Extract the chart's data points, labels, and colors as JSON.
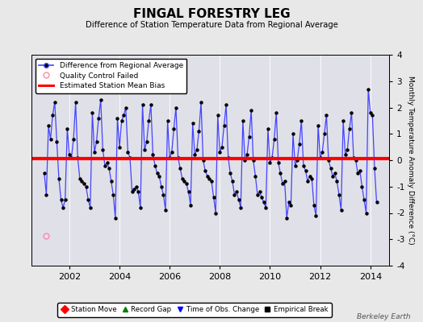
{
  "title": "FINGAL FORESTRY LEG",
  "subtitle": "Difference of Station Temperature Data from Regional Average",
  "ylabel_right": "Monthly Temperature Anomaly Difference (°C)",
  "bias_value": 0.05,
  "ylim": [
    -4,
    4
  ],
  "xlim": [
    2000.5,
    2014.75
  ],
  "xticks": [
    2002,
    2004,
    2006,
    2008,
    2010,
    2012,
    2014
  ],
  "yticks": [
    -3,
    -2,
    -1,
    0,
    1,
    2,
    3
  ],
  "yticks_outer": [
    -4,
    4
  ],
  "background_color": "#e8e8e8",
  "plot_bg_color": "#e0e0e8",
  "line_color": "#4444ff",
  "bias_color": "#ff0000",
  "marker_color": "#000000",
  "qc_fail_color": "#ff88aa",
  "qc_fail_x": 2001.08,
  "qc_fail_y": -2.88,
  "legend_top": {
    "line_label": "Difference from Regional Average",
    "qc_label": "Quality Control Failed",
    "bias_label": "Estimated Station Mean Bias"
  },
  "legend_bottom": {
    "station_move_label": "Station Move",
    "record_gap_label": "Record Gap",
    "obs_change_label": "Time of Obs. Change",
    "empirical_break_label": "Empirical Break"
  },
  "watermark": "Berkeley Earth",
  "time_series": [
    2001.0,
    2001.083,
    2001.167,
    2001.25,
    2001.333,
    2001.417,
    2001.5,
    2001.583,
    2001.667,
    2001.75,
    2001.833,
    2001.917,
    2002.0,
    2002.083,
    2002.167,
    2002.25,
    2002.333,
    2002.417,
    2002.5,
    2002.583,
    2002.667,
    2002.75,
    2002.833,
    2002.917,
    2003.0,
    2003.083,
    2003.167,
    2003.25,
    2003.333,
    2003.417,
    2003.5,
    2003.583,
    2003.667,
    2003.75,
    2003.833,
    2003.917,
    2004.0,
    2004.083,
    2004.167,
    2004.25,
    2004.333,
    2004.417,
    2004.5,
    2004.583,
    2004.667,
    2004.75,
    2004.833,
    2004.917,
    2005.0,
    2005.083,
    2005.167,
    2005.25,
    2005.333,
    2005.417,
    2005.5,
    2005.583,
    2005.667,
    2005.75,
    2005.833,
    2005.917,
    2006.0,
    2006.083,
    2006.167,
    2006.25,
    2006.333,
    2006.417,
    2006.5,
    2006.583,
    2006.667,
    2006.75,
    2006.833,
    2006.917,
    2007.0,
    2007.083,
    2007.167,
    2007.25,
    2007.333,
    2007.417,
    2007.5,
    2007.583,
    2007.667,
    2007.75,
    2007.833,
    2007.917,
    2008.0,
    2008.083,
    2008.167,
    2008.25,
    2008.333,
    2008.417,
    2008.5,
    2008.583,
    2008.667,
    2008.75,
    2008.833,
    2008.917,
    2009.0,
    2009.083,
    2009.167,
    2009.25,
    2009.333,
    2009.417,
    2009.5,
    2009.583,
    2009.667,
    2009.75,
    2009.833,
    2009.917,
    2010.0,
    2010.083,
    2010.167,
    2010.25,
    2010.333,
    2010.417,
    2010.5,
    2010.583,
    2010.667,
    2010.75,
    2010.833,
    2010.917,
    2011.0,
    2011.083,
    2011.167,
    2011.25,
    2011.333,
    2011.417,
    2011.5,
    2011.583,
    2011.667,
    2011.75,
    2011.833,
    2011.917,
    2012.0,
    2012.083,
    2012.167,
    2012.25,
    2012.333,
    2012.417,
    2012.5,
    2012.583,
    2012.667,
    2012.75,
    2012.833,
    2012.917,
    2013.0,
    2013.083,
    2013.167,
    2013.25,
    2013.333,
    2013.417,
    2013.5,
    2013.583,
    2013.667,
    2013.75,
    2013.833,
    2013.917,
    2014.0,
    2014.083,
    2014.167,
    2014.25
  ],
  "values": [
    -0.5,
    -1.3,
    1.3,
    0.8,
    1.7,
    2.2,
    0.7,
    -0.7,
    -1.5,
    -1.8,
    -1.5,
    1.2,
    0.2,
    0.1,
    0.8,
    2.2,
    0.1,
    -0.7,
    -0.8,
    -0.9,
    -1.0,
    -1.5,
    -1.8,
    1.8,
    0.3,
    0.7,
    1.6,
    2.3,
    0.4,
    -0.2,
    -0.1,
    -0.3,
    -0.8,
    -1.3,
    -2.2,
    1.6,
    0.5,
    1.5,
    1.7,
    2.0,
    0.3,
    0.1,
    -1.2,
    -1.1,
    -1.0,
    -1.2,
    -1.8,
    2.1,
    0.4,
    0.7,
    1.5,
    2.1,
    0.2,
    -0.2,
    -0.5,
    -0.6,
    -1.0,
    -1.3,
    -1.9,
    1.5,
    0.1,
    0.3,
    1.2,
    2.0,
    0.1,
    -0.3,
    -0.7,
    -0.8,
    -0.9,
    -1.2,
    -1.7,
    1.4,
    0.2,
    0.4,
    1.1,
    2.2,
    0.0,
    -0.4,
    -0.6,
    -0.7,
    -0.8,
    -1.4,
    -2.0,
    1.7,
    0.3,
    0.5,
    1.3,
    2.1,
    0.1,
    -0.5,
    -0.8,
    -1.3,
    -1.2,
    -1.5,
    -1.8,
    1.5,
    0.0,
    0.2,
    0.9,
    1.9,
    0.0,
    -0.6,
    -1.3,
    -1.2,
    -1.4,
    -1.6,
    -1.8,
    1.2,
    -0.1,
    0.1,
    0.8,
    1.8,
    -0.1,
    -0.5,
    -0.9,
    -0.8,
    -2.2,
    -1.6,
    -1.7,
    1.0,
    -0.2,
    0.0,
    0.6,
    1.5,
    -0.2,
    -0.4,
    -0.8,
    -0.6,
    -0.7,
    -1.7,
    -2.1,
    1.3,
    0.1,
    0.3,
    1.0,
    1.7,
    0.0,
    -0.3,
    -0.6,
    -0.5,
    -0.8,
    -1.3,
    -1.9,
    1.5,
    0.2,
    0.4,
    1.2,
    1.8,
    0.1,
    0.0,
    -0.5,
    -0.4,
    -1.0,
    -1.5,
    -2.0,
    2.7,
    1.8,
    1.7,
    -0.3,
    -1.6
  ]
}
